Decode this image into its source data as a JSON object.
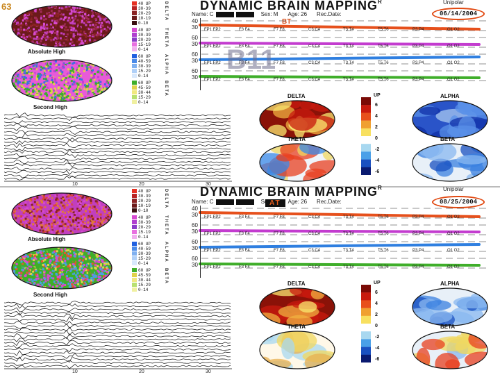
{
  "slide_number": "63",
  "overlay_label": "B11",
  "colors": {
    "accent": "#e14810",
    "line_orange": "#e6501c",
    "line_magenta": "#c33ccf",
    "line_blue": "#2f7fe0",
    "line_green": "#3fae2a"
  },
  "panels": [
    {
      "title": "DYNAMIC  BRAIN  MAPPING",
      "trademark": "R",
      "montage": "Unipolar",
      "meta": {
        "name_label": "Name: C",
        "sex": "Sex: M",
        "age": "Age: 26",
        "rec_label": "Rec.Date:"
      },
      "date": "06/14/2004",
      "tag": "BT",
      "tag_style": "plain",
      "topo_top_label": "Absolute High",
      "topo_bottom_label": "Second High",
      "band_groups": [
        {
          "band": "DELTA",
          "items": [
            "40 UP",
            "30-39",
            "20-29",
            "10-19",
            "0-10"
          ]
        },
        {
          "band": "THETA",
          "items": [
            "40 UP",
            "30-39",
            "20-29",
            "15-19",
            "0-14"
          ]
        },
        {
          "band": "ALPHA",
          "items": [
            "60 UP",
            "40-59",
            "30-39",
            "15-29",
            "0-14"
          ]
        },
        {
          "band": "BETA",
          "items": [
            "60 UP",
            "45-59",
            "30-44",
            "15-29",
            "0-14"
          ]
        }
      ],
      "rows": [
        {
          "y_label": "40",
          "y_label2": "30",
          "pairs": [
            "FP1 FP2",
            "F3 F4",
            "F7 F8",
            "C3 C4",
            "T3 T4",
            "T5 T6",
            "P3 P4",
            "O1 O2"
          ]
        },
        {
          "y_label": "60",
          "y_label2": "30",
          "pairs": [
            "FP1 FP2",
            "F3 F4",
            "F7 F8",
            "C3 C4",
            "T3 T4",
            "T5 T6",
            "P3 P4",
            "O1 O2"
          ]
        },
        {
          "y_label": "60",
          "y_label2": "30",
          "pairs": [
            "FP1 FP2",
            "F3 F4",
            "F7 F8",
            "C3 C4",
            "T3 T4",
            "T5 T6",
            "P3 P4",
            "O1 O2"
          ]
        },
        {
          "y_label": "60",
          "y_label2": "30",
          "pairs": [
            "FP1 FP2",
            "F3 F4",
            "F7 F8",
            "C3 C4",
            "T3 T4",
            "T5 T6",
            "P3 P4",
            "O1 O2"
          ]
        }
      ],
      "maps": {
        "delta": "DELTA",
        "alpha": "ALPHA",
        "theta": "THETA",
        "beta": "BETA"
      },
      "colorbar": {
        "title": "UP",
        "ticks": [
          "6",
          "4",
          "2",
          "0",
          "-2",
          "-4",
          "-6"
        ]
      },
      "trace_axis": [
        "10",
        "20",
        "30"
      ]
    },
    {
      "title": "DYNAMIC  BRAIN  MAPPING",
      "trademark": "R",
      "montage": "Unipolar",
      "meta": {
        "name_label": "Name: C",
        "sex": "Sex: M",
        "age": "Age: 26",
        "rec_label": "Rec.Date:"
      },
      "date": "08/25/2004",
      "tag": "AT",
      "tag_style": "boxed",
      "topo_top_label": "Absolute High",
      "topo_bottom_label": "Second High",
      "band_groups": [
        {
          "band": "DELTA",
          "items": [
            "40 UP",
            "30-39",
            "20-29",
            "10-19",
            "0-10"
          ]
        },
        {
          "band": "THETA",
          "items": [
            "40 UP",
            "30-39",
            "20-29",
            "15-19",
            "0-14"
          ]
        },
        {
          "band": "ALPHA",
          "items": [
            "60 UP",
            "40-59",
            "30-39",
            "15-29",
            "0-14"
          ]
        },
        {
          "band": "BETA",
          "items": [
            "60 UP",
            "45-59",
            "30-44",
            "15-29",
            "0-14"
          ]
        }
      ],
      "rows": [
        {
          "y_label": "40",
          "y_label2": "30",
          "pairs": [
            "FP1 FP2",
            "F3 F4",
            "F7 F8",
            "C3 C4",
            "T3 T4",
            "T5 T6",
            "P3 P4",
            "O1 O2"
          ]
        },
        {
          "y_label": "60",
          "y_label2": "30",
          "pairs": [
            "FP1 FP2",
            "F3 F4",
            "F7 F8",
            "C3 C4",
            "T3 T4",
            "T5 T6",
            "P3 P4",
            "O1 O2"
          ]
        },
        {
          "y_label": "60",
          "y_label2": "30",
          "pairs": [
            "FP1 FP2",
            "F3 F4",
            "F7 F8",
            "C3 C4",
            "T3 T4",
            "T5 T6",
            "P3 P4",
            "O1 O2"
          ]
        },
        {
          "y_label": "60",
          "y_label2": "30",
          "pairs": [
            "FP1 FP2",
            "F3 F4",
            "F7 F8",
            "C3 C4",
            "T3 T4",
            "T5 T6",
            "P3 P4",
            "O1 O2"
          ]
        }
      ],
      "maps": {
        "delta": "DELTA",
        "alpha": "ALPHA",
        "theta": "THETA",
        "beta": "BETA"
      },
      "colorbar": {
        "title": "UP",
        "ticks": [
          "6",
          "4",
          "2",
          "0",
          "-2",
          "-4",
          "-6"
        ]
      },
      "trace_axis": [
        "10",
        "20",
        "30"
      ]
    }
  ]
}
